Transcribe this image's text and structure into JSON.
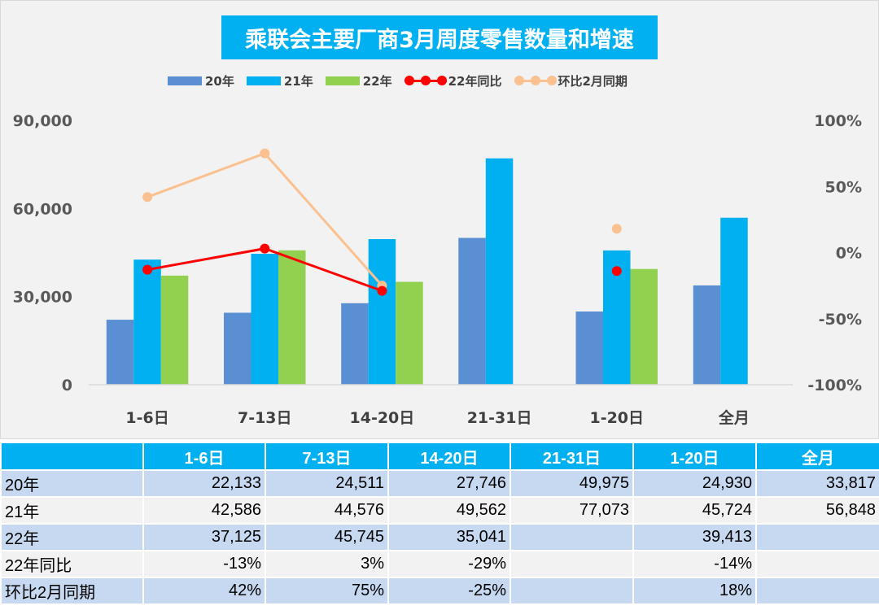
{
  "chart_data": {
    "type": "bar",
    "title": "乘联会主要厂商3月周度零售数量和增速",
    "categories": [
      "1-6日",
      "7-13日",
      "14-20日",
      "21-31日",
      "1-20日",
      "全月"
    ],
    "series": [
      {
        "name": "20年",
        "kind": "bar",
        "color": "#5b8fd4",
        "values": [
          22133,
          24511,
          27746,
          49975,
          24930,
          33817
        ]
      },
      {
        "name": "21年",
        "kind": "bar",
        "color": "#00b0f0",
        "values": [
          42586,
          44576,
          49562,
          77073,
          45724,
          56848
        ]
      },
      {
        "name": "22年",
        "kind": "bar",
        "color": "#92d050",
        "values": [
          37125,
          45745,
          35041,
          null,
          39413,
          null
        ]
      },
      {
        "name": "22年同比",
        "kind": "line",
        "axis": "right",
        "color": "#ff0000",
        "values": [
          -13,
          3,
          -29,
          null,
          -14,
          null
        ]
      },
      {
        "name": "环比2月同期",
        "kind": "line",
        "axis": "right",
        "color": "#fac090",
        "values": [
          42,
          75,
          -25,
          null,
          18,
          null
        ]
      }
    ],
    "y_left": {
      "ticks": [
        "0",
        "30,000",
        "60,000",
        "90,000"
      ],
      "ylim": [
        0,
        90000
      ]
    },
    "y_right": {
      "ticks": [
        "-100%",
        "-50%",
        "0%",
        "50%",
        "100%"
      ],
      "ylim": [
        -100,
        100
      ]
    },
    "grid": false,
    "legend_position": "top"
  },
  "table": {
    "headers": [
      "",
      "1-6日",
      "7-13日",
      "14-20日",
      "21-31日",
      "1-20日",
      "全月"
    ],
    "rows": [
      {
        "label": "20年",
        "cells": [
          "22,133",
          "24,511",
          "27,746",
          "49,975",
          "24,930",
          "33,817"
        ]
      },
      {
        "label": "21年",
        "cells": [
          "42,586",
          "44,576",
          "49,562",
          "77,073",
          "45,724",
          "56,848"
        ]
      },
      {
        "label": "22年",
        "cells": [
          "37,125",
          "45,745",
          "35,041",
          "",
          "39,413",
          ""
        ]
      },
      {
        "label": "22年同比",
        "cells": [
          "-13%",
          "3%",
          "-29%",
          "",
          "-14%",
          ""
        ]
      },
      {
        "label": "环比2月同期",
        "cells": [
          "42%",
          "75%",
          "-25%",
          "",
          "18%",
          ""
        ]
      }
    ]
  }
}
